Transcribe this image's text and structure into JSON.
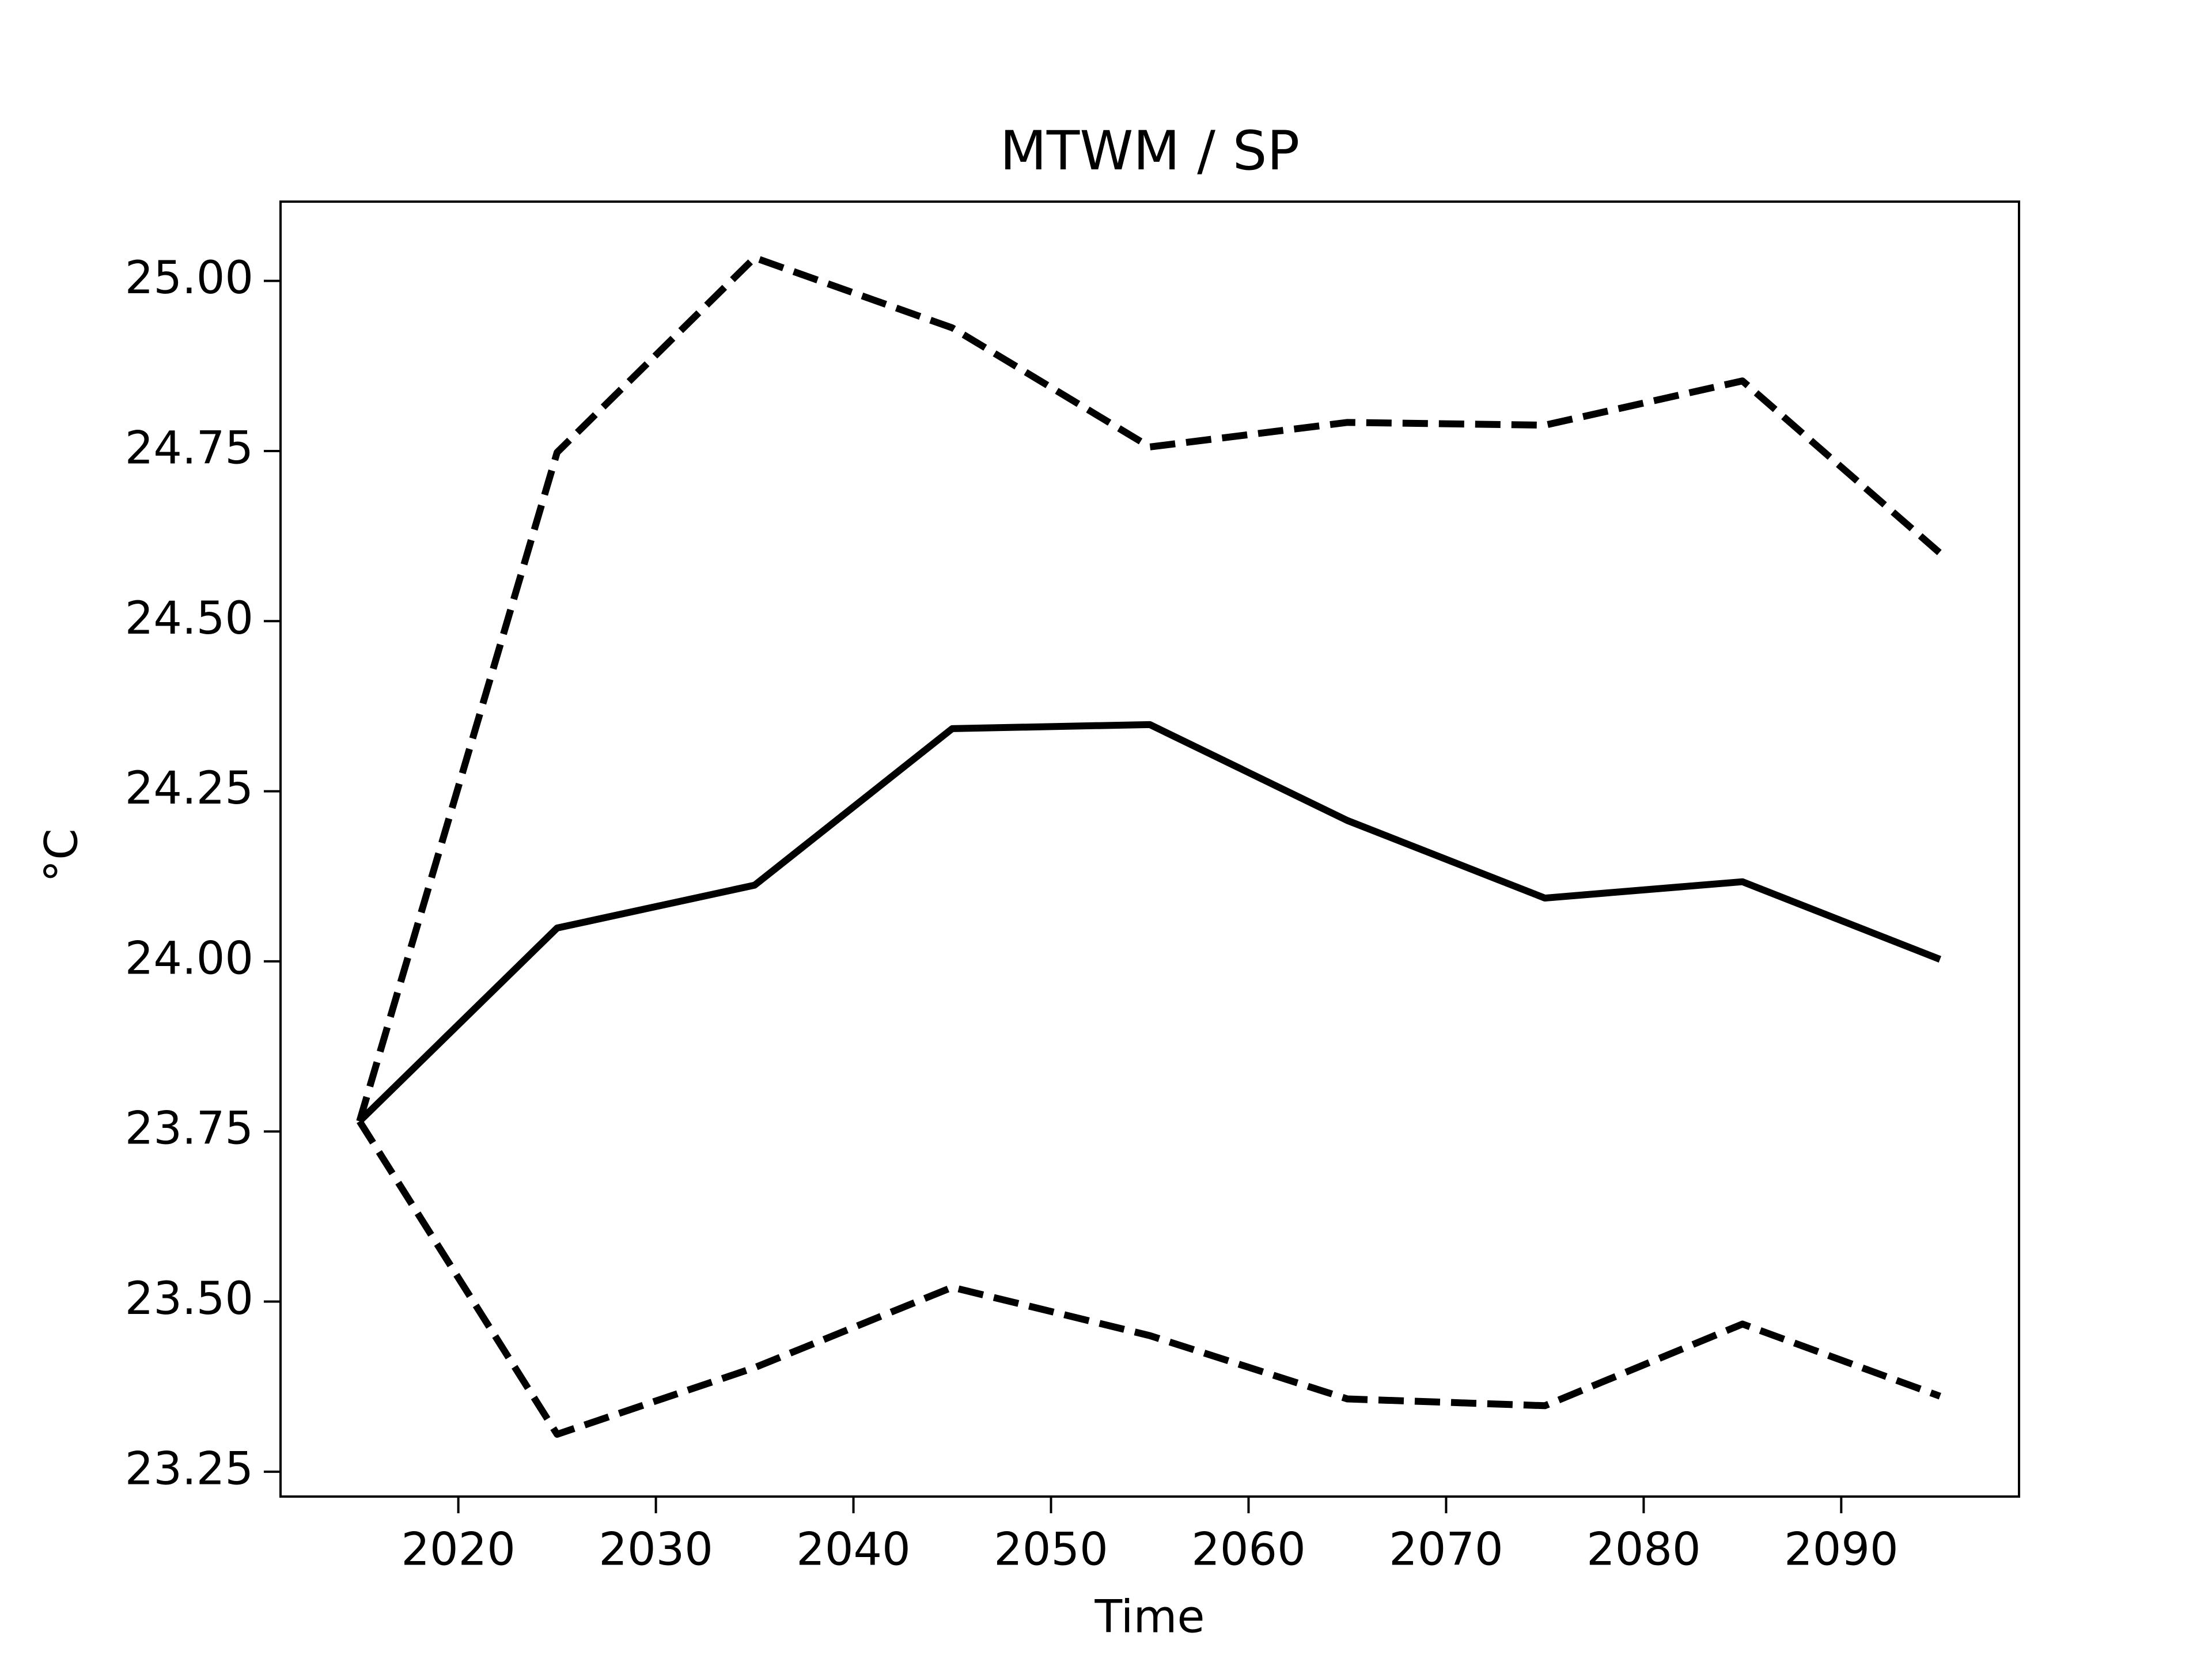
{
  "chart_data": {
    "type": "line",
    "title": "MTWM / SP",
    "xlabel": "Time",
    "ylabel": "°C",
    "x": [
      2015,
      2025,
      2035,
      2045,
      2055,
      2065,
      2075,
      2085,
      2095
    ],
    "series": [
      {
        "color": "#000000",
        "linestyle": "solid",
        "values": [
          23.765,
          24.049,
          24.112,
          24.342,
          24.348,
          24.207,
          24.093,
          24.117,
          24.003
        ]
      },
      {
        "color": "#000000",
        "linestyle": "dashed",
        "values": [
          23.765,
          24.748,
          25.034,
          24.931,
          24.756,
          24.792,
          24.788,
          24.853,
          24.6
        ]
      },
      {
        "color": "#000000",
        "linestyle": "dashed",
        "values": [
          23.765,
          23.305,
          23.403,
          23.521,
          23.45,
          23.357,
          23.347,
          23.467,
          23.361
        ]
      }
    ],
    "xlim": [
      2011,
      2099
    ],
    "xticks": [
      2020,
      2030,
      2040,
      2050,
      2060,
      2070,
      2080,
      2090
    ],
    "ylim": [
      23.2135,
      25.1165
    ],
    "yticks": [
      {
        "value": 23.25,
        "label": "23.25"
      },
      {
        "value": 23.5,
        "label": "23.50"
      },
      {
        "value": 23.75,
        "label": "23.75"
      },
      {
        "value": 24,
        "label": "24.00"
      },
      {
        "value": 24.25,
        "label": "24.25"
      },
      {
        "value": 24.5,
        "label": "24.50"
      },
      {
        "value": 24.75,
        "label": "24.75"
      },
      {
        "value": 25,
        "label": "25.00"
      }
    ],
    "grid": false
  }
}
